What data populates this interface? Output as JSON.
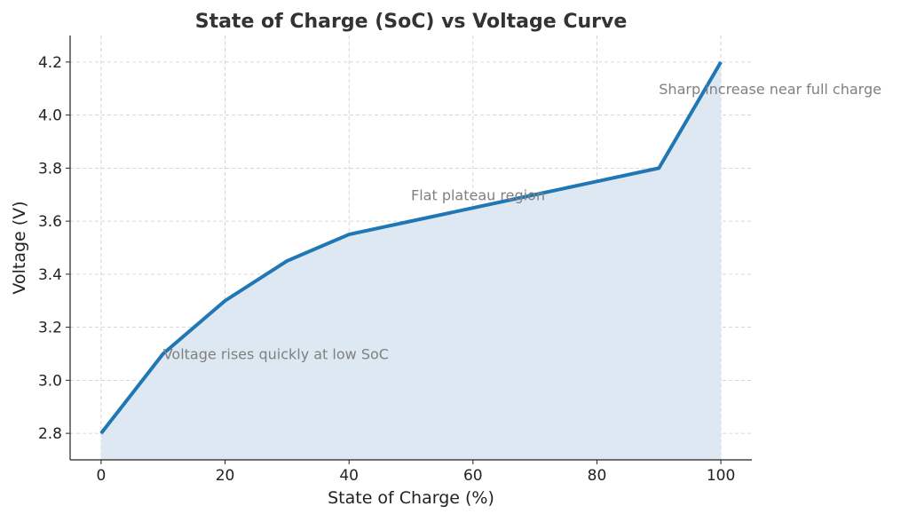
{
  "chart_data": {
    "type": "area",
    "title": "State of Charge (SoC) vs Voltage Curve",
    "xlabel": "State of Charge (%)",
    "ylabel": "Voltage (V)",
    "x": [
      0,
      10,
      20,
      30,
      40,
      50,
      60,
      70,
      80,
      90,
      100
    ],
    "series": [
      {
        "values": [
          2.8,
          3.1,
          3.3,
          3.45,
          3.55,
          3.6,
          3.65,
          3.7,
          3.75,
          3.8,
          4.2
        ],
        "color": "#1f77b4",
        "fill": "#dde8f2"
      }
    ],
    "xlim": [
      -5,
      105
    ],
    "ylim": [
      2.7,
      4.3
    ],
    "xticks": [
      0,
      20,
      40,
      60,
      80,
      100
    ],
    "yticks": [
      2.8,
      3.0,
      3.2,
      3.4,
      3.6,
      3.8,
      4.0,
      4.2
    ],
    "xtick_labels": [
      "0",
      "20",
      "40",
      "60",
      "80",
      "100"
    ],
    "ytick_labels": [
      "2.8",
      "3.0",
      "3.2",
      "3.4",
      "3.6",
      "3.8",
      "4.0",
      "4.2"
    ],
    "grid": true,
    "annotations": [
      {
        "text": "Voltage rises quickly at low SoC",
        "x": 10,
        "y": 3.1
      },
      {
        "text": "Flat plateau region",
        "x": 50,
        "y": 3.7
      },
      {
        "text": "Sharp increase near full charge",
        "x": 90,
        "y": 4.1
      }
    ]
  }
}
